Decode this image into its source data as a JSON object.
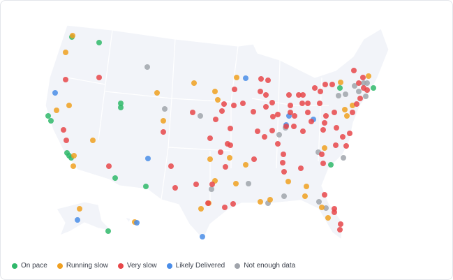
{
  "legend": {
    "items": [
      {
        "label": "On pace",
        "color": "#2fb86a"
      },
      {
        "label": "Running slow",
        "color": "#f0a020"
      },
      {
        "label": "Very slow",
        "color": "#e8474a"
      },
      {
        "label": "Likely Delivered",
        "color": "#4a8de8"
      },
      {
        "label": "Not enough data",
        "color": "#a0a4ab"
      }
    ]
  }
}
